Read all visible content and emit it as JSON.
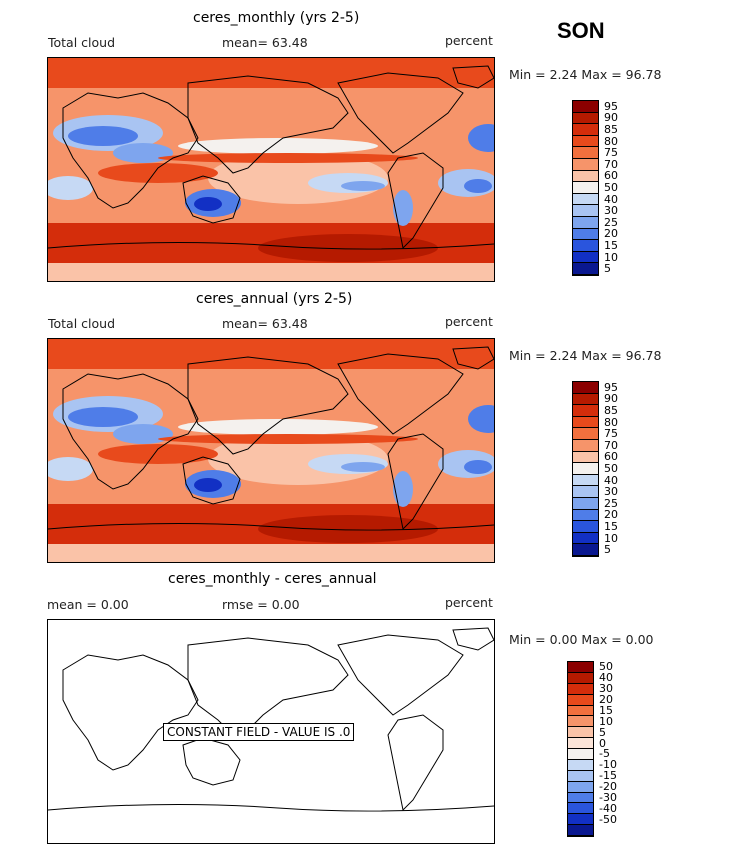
{
  "season": "SON",
  "panels": [
    {
      "title": "ceres_monthly (yrs 2-5)",
      "variable": "Total cloud",
      "stat1": "mean=  63.48",
      "stat2": "",
      "units": "percent",
      "minmax": "Min =    2.24  Max =   96.78",
      "legend_levels": [
        "95",
        "90",
        "85",
        "80",
        "75",
        "70",
        "60",
        "50",
        "40",
        "30",
        "25",
        "20",
        "15",
        "10",
        "5"
      ],
      "legend_colors": [
        "#8b0000",
        "#b51a00",
        "#d42d0b",
        "#e84a1c",
        "#f2703e",
        "#f6946a",
        "#fac3a8",
        "#f4f1ee",
        "#c6d9f4",
        "#a9c4f2",
        "#7ea5ee",
        "#4f7de8",
        "#2a55dd",
        "#1230c4",
        "#0a1890"
      ],
      "filled": true
    },
    {
      "title": "ceres_annual (yrs 2-5)",
      "variable": "Total cloud",
      "stat1": "mean=  63.48",
      "stat2": "",
      "units": "percent",
      "minmax": "Min =    2.24  Max =   96.78",
      "legend_levels": [
        "95",
        "90",
        "85",
        "80",
        "75",
        "70",
        "60",
        "50",
        "40",
        "30",
        "25",
        "20",
        "15",
        "10",
        "5"
      ],
      "legend_colors": [
        "#8b0000",
        "#b51a00",
        "#d42d0b",
        "#e84a1c",
        "#f2703e",
        "#f6946a",
        "#fac3a8",
        "#f4f1ee",
        "#c6d9f4",
        "#a9c4f2",
        "#7ea5ee",
        "#4f7de8",
        "#2a55dd",
        "#1230c4",
        "#0a1890"
      ],
      "filled": true
    },
    {
      "title": "ceres_monthly - ceres_annual",
      "variable": "",
      "stat1": "mean =     0.00",
      "stat2": "rmse =     0.00",
      "units": "percent",
      "minmax": "Min =    0.00  Max =    0.00",
      "legend_levels": [
        "50",
        "40",
        "30",
        "20",
        "15",
        "10",
        "5",
        "0",
        "-5",
        "-10",
        "-15",
        "-20",
        "-30",
        "-40",
        "-50"
      ],
      "legend_colors": [
        "#8b0000",
        "#b51a00",
        "#d42d0b",
        "#e84a1c",
        "#f2703e",
        "#f6946a",
        "#fac3a8",
        "#fbe4d8",
        "#f4f1ee",
        "#c6d9f4",
        "#a9c4f2",
        "#7ea5ee",
        "#4f7de8",
        "#2a55dd",
        "#1230c4",
        "#0a1890"
      ],
      "filled": false,
      "banner": "CONSTANT FIELD - VALUE IS .0"
    }
  ]
}
